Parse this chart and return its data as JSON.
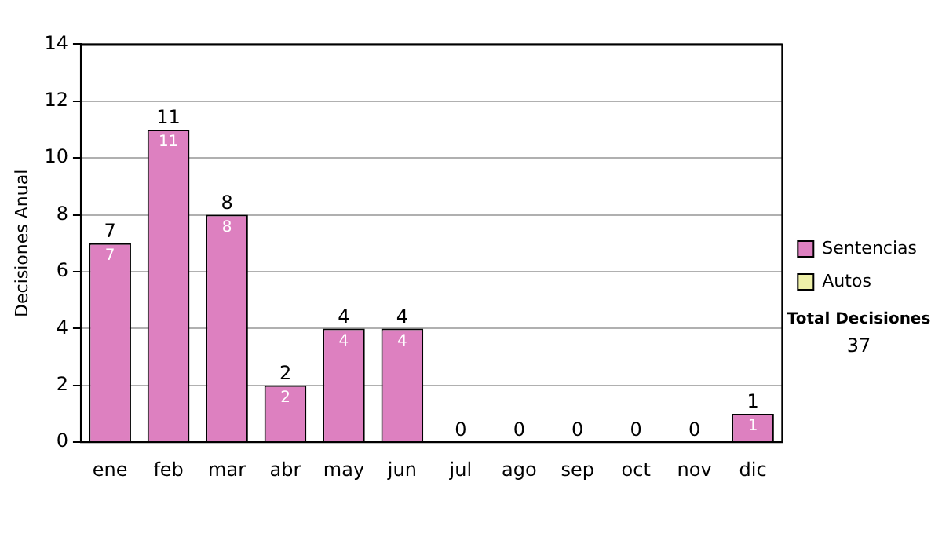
{
  "chart_data": {
    "type": "bar",
    "ylabel": "Decisiones Anual",
    "categories": [
      "ene",
      "feb",
      "mar",
      "abr",
      "may",
      "jun",
      "jul",
      "ago",
      "sep",
      "oct",
      "nov",
      "dic"
    ],
    "series": [
      {
        "name": "Sentencias",
        "color": "#dd80c0",
        "values": [
          7,
          11,
          8,
          2,
          4,
          4,
          0,
          0,
          0,
          0,
          0,
          1
        ],
        "value_labels": [
          "7",
          "11",
          "8",
          "2",
          "4",
          "4",
          null,
          null,
          null,
          null,
          null,
          "1"
        ]
      },
      {
        "name": "Autos",
        "color": "#eef0a8",
        "values": [
          0,
          0,
          0,
          0,
          0,
          0,
          0,
          0,
          0,
          0,
          0,
          0
        ]
      }
    ],
    "stacked": true,
    "totals": [
      "7",
      "11",
      "8",
      "2",
      "4",
      "4",
      "0",
      "0",
      "0",
      "0",
      "0",
      "1"
    ],
    "ylim": [
      0,
      14
    ],
    "yticks": [
      0,
      2,
      4,
      6,
      8,
      10,
      12,
      14
    ],
    "grid": "y",
    "legend": "right",
    "annotations": [
      "Total Decisiones",
      "37"
    ]
  }
}
